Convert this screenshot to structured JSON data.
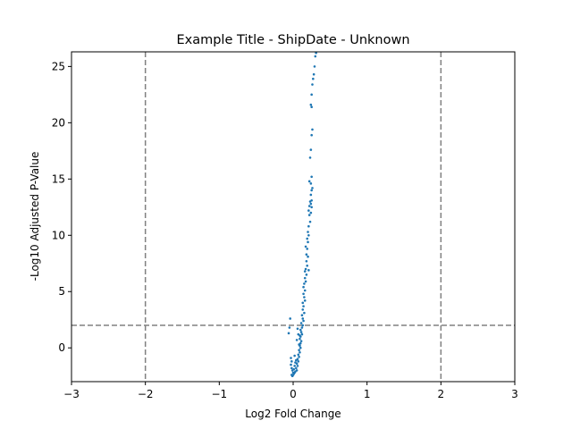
{
  "chart_data": {
    "type": "scatter",
    "title": "Example Title - ShipDate - Unknown",
    "xlabel": "Log2 Fold Change",
    "ylabel": "-Log10 Adjusted P-Value",
    "xlim": [
      -3,
      3
    ],
    "ylim": [
      -3,
      26.3
    ],
    "xticks": [
      -3,
      -2,
      -1,
      0,
      1,
      2,
      3
    ],
    "xtick_labels": [
      "−3",
      "−2",
      "−1",
      "0",
      "1",
      "2",
      "3"
    ],
    "yticks": [
      0,
      5,
      10,
      15,
      20,
      25
    ],
    "ytick_labels": [
      "0",
      "5",
      "10",
      "15",
      "20",
      "25"
    ],
    "grid": false,
    "point_color": "#1f77b4",
    "threshold_color": "#808080",
    "thresholds": {
      "vertical": [
        -2,
        2
      ],
      "horizontal": [
        2
      ]
    },
    "series": [
      {
        "points": [
          [
            0.31,
            26.2
          ],
          [
            0.3,
            25.9
          ],
          [
            0.29,
            25.0
          ],
          [
            0.28,
            24.3
          ],
          [
            0.27,
            23.9
          ],
          [
            0.26,
            23.4
          ],
          [
            0.25,
            22.5
          ],
          [
            0.24,
            21.6
          ],
          [
            0.25,
            21.4
          ],
          [
            0.26,
            19.4
          ],
          [
            0.25,
            18.9
          ],
          [
            0.24,
            17.6
          ],
          [
            0.23,
            16.9
          ],
          [
            0.25,
            15.2
          ],
          [
            0.24,
            14.6
          ],
          [
            0.22,
            14.8
          ],
          [
            0.26,
            14.2
          ],
          [
            0.25,
            14.0
          ],
          [
            0.24,
            13.6
          ],
          [
            0.25,
            13.1
          ],
          [
            0.23,
            13.0
          ],
          [
            0.24,
            12.8
          ],
          [
            0.22,
            12.6
          ],
          [
            0.25,
            12.5
          ],
          [
            0.21,
            12.2
          ],
          [
            0.24,
            12.0
          ],
          [
            0.22,
            11.8
          ],
          [
            0.23,
            11.2
          ],
          [
            0.21,
            10.8
          ],
          [
            0.2,
            10.3
          ],
          [
            0.21,
            10.0
          ],
          [
            0.19,
            9.7
          ],
          [
            0.2,
            9.4
          ],
          [
            0.17,
            9.0
          ],
          [
            0.19,
            8.8
          ],
          [
            0.18,
            8.3
          ],
          [
            0.2,
            8.1
          ],
          [
            0.18,
            7.7
          ],
          [
            0.19,
            7.3
          ],
          [
            0.17,
            7.0
          ],
          [
            0.21,
            6.9
          ],
          [
            0.16,
            6.8
          ],
          [
            0.18,
            6.5
          ],
          [
            0.16,
            6.2
          ],
          [
            0.17,
            5.9
          ],
          [
            0.15,
            5.7
          ],
          [
            0.14,
            5.4
          ],
          [
            0.16,
            5.1
          ],
          [
            0.14,
            4.8
          ],
          [
            0.15,
            4.5
          ],
          [
            0.16,
            4.2
          ],
          [
            0.13,
            4.0
          ],
          [
            0.14,
            3.7
          ],
          [
            0.13,
            3.4
          ],
          [
            0.15,
            3.1
          ],
          [
            0.12,
            2.9
          ],
          [
            0.13,
            2.6
          ],
          [
            0.14,
            2.4
          ],
          [
            0.11,
            2.2
          ],
          [
            0.13,
            2.0
          ],
          [
            0.12,
            1.8
          ],
          [
            0.1,
            1.6
          ],
          [
            0.11,
            1.4
          ],
          [
            0.12,
            1.2
          ],
          [
            0.1,
            1.0
          ],
          [
            0.09,
            0.8
          ],
          [
            0.11,
            0.6
          ],
          [
            0.1,
            0.4
          ],
          [
            0.09,
            0.2
          ],
          [
            0.1,
            0.0
          ],
          [
            0.08,
            -0.2
          ],
          [
            0.09,
            -0.4
          ],
          [
            0.07,
            -0.6
          ],
          [
            0.08,
            -0.8
          ],
          [
            0.06,
            -1.0
          ],
          [
            0.07,
            -1.2
          ],
          [
            0.05,
            -1.4
          ],
          [
            0.06,
            -1.6
          ],
          [
            0.04,
            -1.8
          ],
          [
            0.05,
            -2.0
          ],
          [
            0.03,
            -2.1
          ],
          [
            0.02,
            -2.2
          ],
          [
            0.01,
            -2.3
          ],
          [
            0.0,
            -2.4
          ],
          [
            -0.01,
            -2.5
          ],
          [
            -0.02,
            -2.4
          ],
          [
            0.0,
            -2.2
          ],
          [
            -0.01,
            -2.0
          ],
          [
            -0.02,
            -1.8
          ],
          [
            -0.03,
            -1.5
          ],
          [
            -0.02,
            -1.2
          ],
          [
            -0.03,
            -0.9
          ],
          [
            0.01,
            -1.9
          ],
          [
            0.02,
            -1.6
          ],
          [
            0.03,
            -1.3
          ],
          [
            0.04,
            -1.1
          ],
          [
            0.02,
            -0.7
          ],
          [
            -0.04,
            2.6
          ],
          [
            -0.05,
            1.8
          ],
          [
            -0.06,
            1.3
          ],
          [
            0.06,
            1.7
          ],
          [
            0.07,
            1.2
          ],
          [
            0.05,
            0.7
          ],
          [
            0.08,
            0.3
          ],
          [
            0.09,
            1.1
          ]
        ]
      }
    ]
  }
}
